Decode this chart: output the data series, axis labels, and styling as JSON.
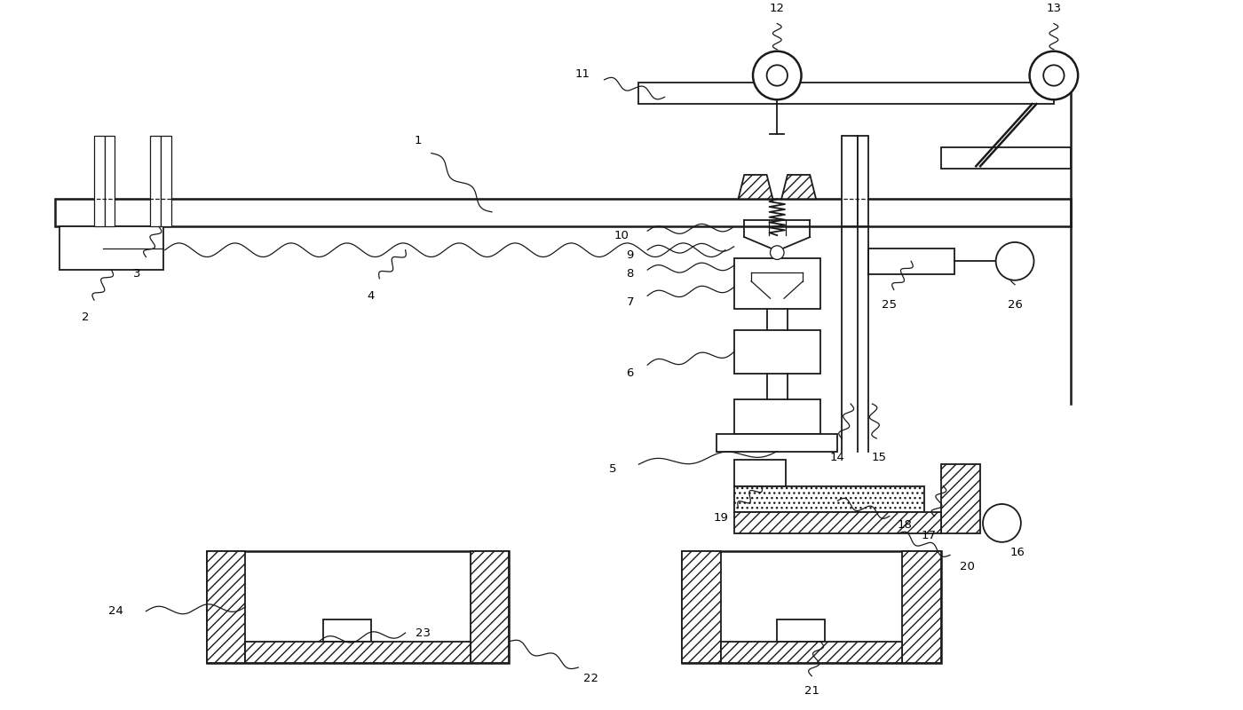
{
  "bg_color": "#ffffff",
  "line_color": "#1a1a1a",
  "fig_width": 14.0,
  "fig_height": 8.0,
  "lw_main": 1.3,
  "lw_thin": 0.9,
  "lw_thick": 1.8
}
